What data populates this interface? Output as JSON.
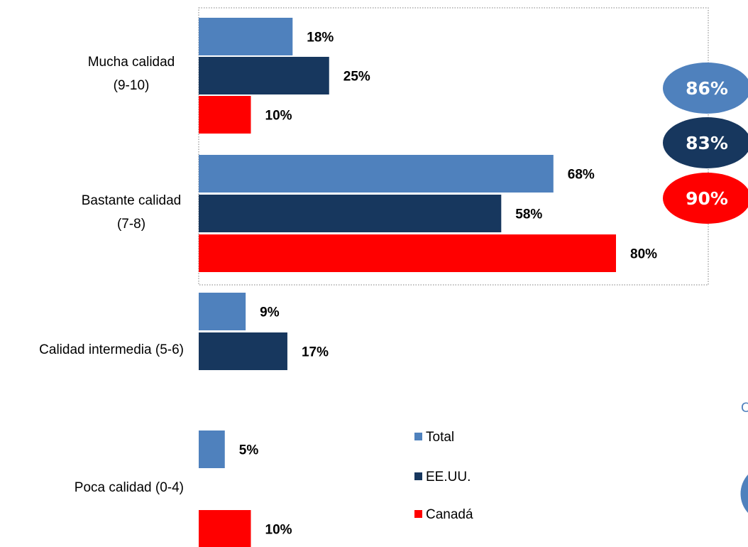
{
  "chart_data": {
    "type": "bar",
    "orientation": "horizontal",
    "categories": [
      [
        "Mucha calidad",
        "(9-10)"
      ],
      [
        "Bastante calidad",
        "(7-8)"
      ],
      [
        "Calidad intermedia (5-6)"
      ],
      [
        "Poca calidad (0-4)"
      ]
    ],
    "series": [
      {
        "name": "Total",
        "color": "#4f81bd",
        "values": [
          18,
          68,
          9,
          5
        ],
        "labels": [
          "18%",
          "68%",
          "9%",
          "5%"
        ]
      },
      {
        "name": "EE.UU.",
        "color": "#17375e",
        "values": [
          25,
          58,
          17,
          null
        ],
        "labels": [
          "25%",
          "58%",
          "17%",
          ""
        ]
      },
      {
        "name": "Canadá",
        "color": "#ff0000",
        "values": [
          10,
          80,
          null,
          10
        ],
        "labels": [
          "10%",
          "80%",
          "",
          "10%"
        ]
      }
    ],
    "xlim": [
      0,
      100
    ],
    "grid": false,
    "legend": "bottom-center",
    "highlight_box": {
      "categories": [
        0,
        1
      ],
      "style": "dotted"
    },
    "summary_bubbles": [
      {
        "series": "Total",
        "value": "86%",
        "color": "#4f81bd"
      },
      {
        "series": "EE.UU.",
        "value": "83%",
        "color": "#17375e"
      },
      {
        "series": "Canadá",
        "value": "90%",
        "color": "#ff0000"
      }
    ],
    "cut_off_fragments": {
      "letter": "C",
      "pie_color": "#4f81bd"
    }
  }
}
